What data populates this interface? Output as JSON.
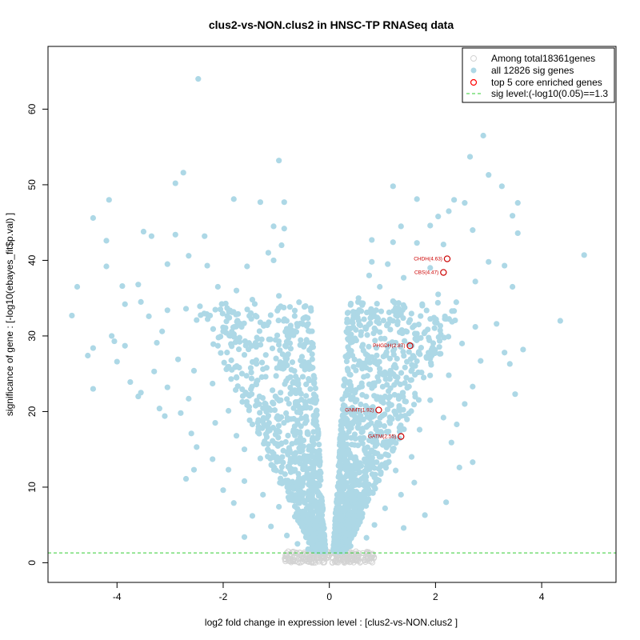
{
  "chart_data": {
    "type": "scatter",
    "title": "clus2-vs-NON.clus2 in HNSC-TP RNASeq data",
    "xlabel": "log2 fold change in expression level : [clus2-vs-NON.clus2 ]",
    "ylabel": "significance of gene : [-log10(ebayes_fit$p.val) ]",
    "xlim": [
      -5.3,
      5.4
    ],
    "ylim": [
      -2.6,
      68.3
    ],
    "xticks": [
      -4,
      -2,
      0,
      2,
      4
    ],
    "yticks": [
      0,
      10,
      20,
      30,
      40,
      50,
      60
    ],
    "grid": false,
    "legend_position": "top-right",
    "legend": [
      {
        "label": "Among total18361genes",
        "marker": "open-circle",
        "color": "#d3d3d3"
      },
      {
        "label": "all 12826 sig genes",
        "marker": "filled-circle",
        "color": "#add8e6"
      },
      {
        "label": "top 5 core enriched genes",
        "marker": "open-circle",
        "color": "#ff0000"
      },
      {
        "label": "sig level:(-log10(0.05)==1.3",
        "marker": "dashed-line",
        "color": "#33cc33"
      }
    ],
    "sig_level": 1.3,
    "colors": {
      "all": "#d3d3d3",
      "sig": "#add8e6",
      "top": "#cc0000",
      "sigline": "#33cc33"
    },
    "series": [
      {
        "name": "all 12826 sig genes",
        "points": [
          [
            -2.47,
            64.0
          ],
          [
            -0.95,
            53.2
          ],
          [
            -2.75,
            51.6
          ],
          [
            -2.9,
            50.2
          ],
          [
            -4.15,
            48.0
          ],
          [
            -1.8,
            48.1
          ],
          [
            -0.85,
            47.7
          ],
          [
            -1.3,
            47.7
          ],
          [
            -4.45,
            45.6
          ],
          [
            -1.05,
            44.5
          ],
          [
            -0.85,
            44.2
          ],
          [
            -3.5,
            43.8
          ],
          [
            -3.35,
            43.2
          ],
          [
            -2.9,
            43.4
          ],
          [
            -2.35,
            43.2
          ],
          [
            -4.2,
            42.6
          ],
          [
            -0.9,
            42.0
          ],
          [
            -2.65,
            40.6
          ],
          [
            -1.15,
            41.0
          ],
          [
            -1.05,
            40.0
          ],
          [
            -4.2,
            39.2
          ],
          [
            -3.05,
            39.5
          ],
          [
            -2.3,
            39.3
          ],
          [
            -1.55,
            39.2
          ],
          [
            -3.9,
            36.6
          ],
          [
            -4.75,
            36.5
          ],
          [
            -3.6,
            36.8
          ],
          [
            -2.1,
            36.5
          ],
          [
            -1.75,
            36.0
          ],
          [
            -3.55,
            34.5
          ],
          [
            -3.85,
            34.2
          ],
          [
            -3.05,
            33.4
          ],
          [
            -2.7,
            33.6
          ],
          [
            -1.45,
            34.8
          ],
          [
            -0.95,
            35.3
          ],
          [
            -4.85,
            32.7
          ],
          [
            -3.4,
            32.6
          ],
          [
            -2.5,
            32.1
          ],
          [
            -1.3,
            31.8
          ],
          [
            -0.6,
            31.3
          ],
          [
            -3.15,
            30.6
          ],
          [
            -2.0,
            30.6
          ],
          [
            -4.1,
            30.0
          ],
          [
            -4.05,
            29.3
          ],
          [
            -3.25,
            29.1
          ],
          [
            -2.1,
            28.7
          ],
          [
            -1.35,
            29.6
          ],
          [
            -0.55,
            28.8
          ],
          [
            -4.45,
            28.4
          ],
          [
            -3.85,
            28.7
          ],
          [
            -4.55,
            27.4
          ],
          [
            -4.0,
            26.6
          ],
          [
            -2.85,
            26.9
          ],
          [
            -1.6,
            27.5
          ],
          [
            -0.8,
            27.0
          ],
          [
            -3.3,
            25.3
          ],
          [
            -2.55,
            25.4
          ],
          [
            -1.85,
            24.3
          ],
          [
            -3.75,
            23.9
          ],
          [
            -3.05,
            23.2
          ],
          [
            -2.2,
            23.7
          ],
          [
            -1.2,
            24.6
          ],
          [
            -0.5,
            24.6
          ],
          [
            -4.45,
            23.0
          ],
          [
            -3.55,
            22.5
          ],
          [
            -3.6,
            22.0
          ],
          [
            -2.65,
            21.7
          ],
          [
            -1.55,
            22.3
          ],
          [
            -0.7,
            22.7
          ],
          [
            -3.2,
            20.4
          ],
          [
            -2.8,
            19.8
          ],
          [
            -1.9,
            20.1
          ],
          [
            -1.2,
            21.0
          ],
          [
            -0.45,
            20.9
          ],
          [
            -3.1,
            19.4
          ],
          [
            -2.15,
            18.5
          ],
          [
            -1.45,
            18.3
          ],
          [
            -0.6,
            18.8
          ],
          [
            -2.6,
            17.1
          ],
          [
            -1.75,
            16.8
          ],
          [
            -1.0,
            17.5
          ],
          [
            -0.4,
            17.0
          ],
          [
            -2.5,
            15.3
          ],
          [
            -1.6,
            15.0
          ],
          [
            -0.9,
            15.8
          ],
          [
            -0.35,
            15.2
          ],
          [
            -2.2,
            13.7
          ],
          [
            -1.3,
            13.8
          ],
          [
            -0.6,
            13.4
          ],
          [
            -2.55,
            12.3
          ],
          [
            -1.9,
            12.3
          ],
          [
            -1.0,
            12.2
          ],
          [
            -0.3,
            12.6
          ],
          [
            -2.7,
            11.1
          ],
          [
            -1.6,
            10.8
          ],
          [
            -0.75,
            10.6
          ],
          [
            -0.25,
            10.5
          ],
          [
            -2.0,
            9.6
          ],
          [
            -1.25,
            9.0
          ],
          [
            -0.5,
            9.0
          ],
          [
            -0.2,
            9.2
          ],
          [
            -1.8,
            7.9
          ],
          [
            -0.95,
            7.4
          ],
          [
            -0.4,
            7.5
          ],
          [
            -1.45,
            6.2
          ],
          [
            -0.65,
            6.1
          ],
          [
            -0.2,
            6.4
          ],
          [
            -1.1,
            4.8
          ],
          [
            -0.5,
            4.9
          ],
          [
            -0.15,
            5.0
          ],
          [
            -1.6,
            3.4
          ],
          [
            -0.8,
            3.6
          ],
          [
            -0.3,
            3.5
          ],
          [
            -0.12,
            3.8
          ],
          [
            -0.6,
            2.5
          ],
          [
            -0.2,
            2.4
          ],
          [
            -0.1,
            2.8
          ],
          [
            -0.4,
            1.8
          ],
          [
            -0.15,
            1.6
          ],
          [
            2.9,
            56.5
          ],
          [
            2.65,
            53.7
          ],
          [
            3.0,
            51.3
          ],
          [
            3.25,
            49.8
          ],
          [
            1.2,
            49.8
          ],
          [
            1.65,
            48.1
          ],
          [
            2.55,
            47.6
          ],
          [
            2.35,
            48.0
          ],
          [
            2.25,
            46.5
          ],
          [
            2.05,
            45.8
          ],
          [
            3.45,
            45.9
          ],
          [
            3.55,
            47.6
          ],
          [
            1.9,
            44.6
          ],
          [
            1.35,
            44.5
          ],
          [
            2.7,
            44.0
          ],
          [
            3.55,
            43.6
          ],
          [
            0.8,
            42.7
          ],
          [
            1.2,
            42.4
          ],
          [
            2.15,
            42.1
          ],
          [
            1.65,
            42.3
          ],
          [
            4.8,
            40.7
          ],
          [
            3.0,
            39.8
          ],
          [
            3.3,
            39.3
          ],
          [
            0.8,
            39.8
          ],
          [
            1.1,
            39.5
          ],
          [
            1.9,
            39.0
          ],
          [
            2.75,
            37.2
          ],
          [
            0.75,
            38.0
          ],
          [
            1.4,
            37.7
          ],
          [
            3.45,
            36.5
          ],
          [
            0.95,
            36.5
          ],
          [
            2.05,
            35.5
          ],
          [
            0.55,
            35.0
          ],
          [
            1.2,
            34.6
          ],
          [
            1.75,
            34.2
          ],
          [
            2.35,
            33.3
          ],
          [
            0.45,
            33.2
          ],
          [
            0.85,
            32.6
          ],
          [
            1.35,
            32.9
          ],
          [
            4.35,
            32.0
          ],
          [
            3.15,
            31.6
          ],
          [
            2.75,
            31.2
          ],
          [
            0.5,
            30.8
          ],
          [
            0.95,
            30.5
          ],
          [
            1.65,
            30.3
          ],
          [
            2.1,
            30.2
          ],
          [
            0.4,
            29.4
          ],
          [
            1.25,
            29.1
          ],
          [
            2.5,
            29.0
          ],
          [
            3.65,
            28.2
          ],
          [
            3.3,
            27.8
          ],
          [
            0.35,
            27.4
          ],
          [
            0.8,
            27.2
          ],
          [
            1.9,
            27.0
          ],
          [
            2.85,
            26.7
          ],
          [
            3.4,
            26.3
          ],
          [
            0.35,
            25.5
          ],
          [
            1.15,
            25.4
          ],
          [
            2.25,
            24.8
          ],
          [
            0.3,
            24.0
          ],
          [
            0.75,
            23.6
          ],
          [
            1.5,
            23.3
          ],
          [
            2.7,
            23.3
          ],
          [
            3.5,
            22.3
          ],
          [
            0.3,
            22.1
          ],
          [
            1.05,
            22.0
          ],
          [
            1.9,
            21.5
          ],
          [
            2.55,
            21.0
          ],
          [
            0.25,
            20.3
          ],
          [
            0.7,
            20.6
          ],
          [
            1.35,
            19.4
          ],
          [
            2.15,
            19.2
          ],
          [
            0.28,
            18.4
          ],
          [
            0.95,
            18.2
          ],
          [
            1.7,
            17.6
          ],
          [
            2.4,
            18.3
          ],
          [
            0.22,
            16.8
          ],
          [
            0.65,
            16.5
          ],
          [
            1.15,
            16.1
          ],
          [
            2.3,
            15.9
          ],
          [
            0.25,
            15.0
          ],
          [
            0.85,
            14.6
          ],
          [
            1.55,
            14.0
          ],
          [
            2.7,
            13.3
          ],
          [
            0.2,
            13.4
          ],
          [
            0.6,
            12.8
          ],
          [
            1.25,
            12.2
          ],
          [
            2.45,
            12.6
          ],
          [
            0.18,
            11.5
          ],
          [
            0.9,
            11.0
          ],
          [
            1.6,
            10.6
          ],
          [
            0.2,
            9.8
          ],
          [
            0.65,
            9.3
          ],
          [
            1.35,
            9.0
          ],
          [
            2.2,
            8.0
          ],
          [
            0.18,
            8.0
          ],
          [
            0.55,
            7.6
          ],
          [
            1.05,
            7.2
          ],
          [
            1.8,
            6.3
          ],
          [
            0.15,
            6.2
          ],
          [
            0.45,
            5.7
          ],
          [
            0.85,
            5.0
          ],
          [
            1.4,
            4.6
          ],
          [
            0.12,
            4.3
          ],
          [
            0.35,
            3.8
          ],
          [
            0.7,
            3.3
          ],
          [
            0.15,
            2.7
          ],
          [
            0.4,
            2.2
          ],
          [
            0.1,
            1.8
          ],
          [
            0.2,
            1.5
          ]
        ]
      },
      {
        "name": "top 5 core enriched genes",
        "points": [
          {
            "x": 2.22,
            "y": 40.2,
            "gene": "CHDH(4.63)"
          },
          {
            "x": 2.15,
            "y": 38.4,
            "gene": "CBS(4.47)"
          },
          {
            "x": 1.52,
            "y": 28.7,
            "gene": "PHGDH(2.87)"
          },
          {
            "x": 0.93,
            "y": 20.2,
            "gene": "GNMT(1.92)"
          },
          {
            "x": 1.35,
            "y": 16.7,
            "gene": "GATM(2.55)"
          }
        ]
      }
    ]
  }
}
